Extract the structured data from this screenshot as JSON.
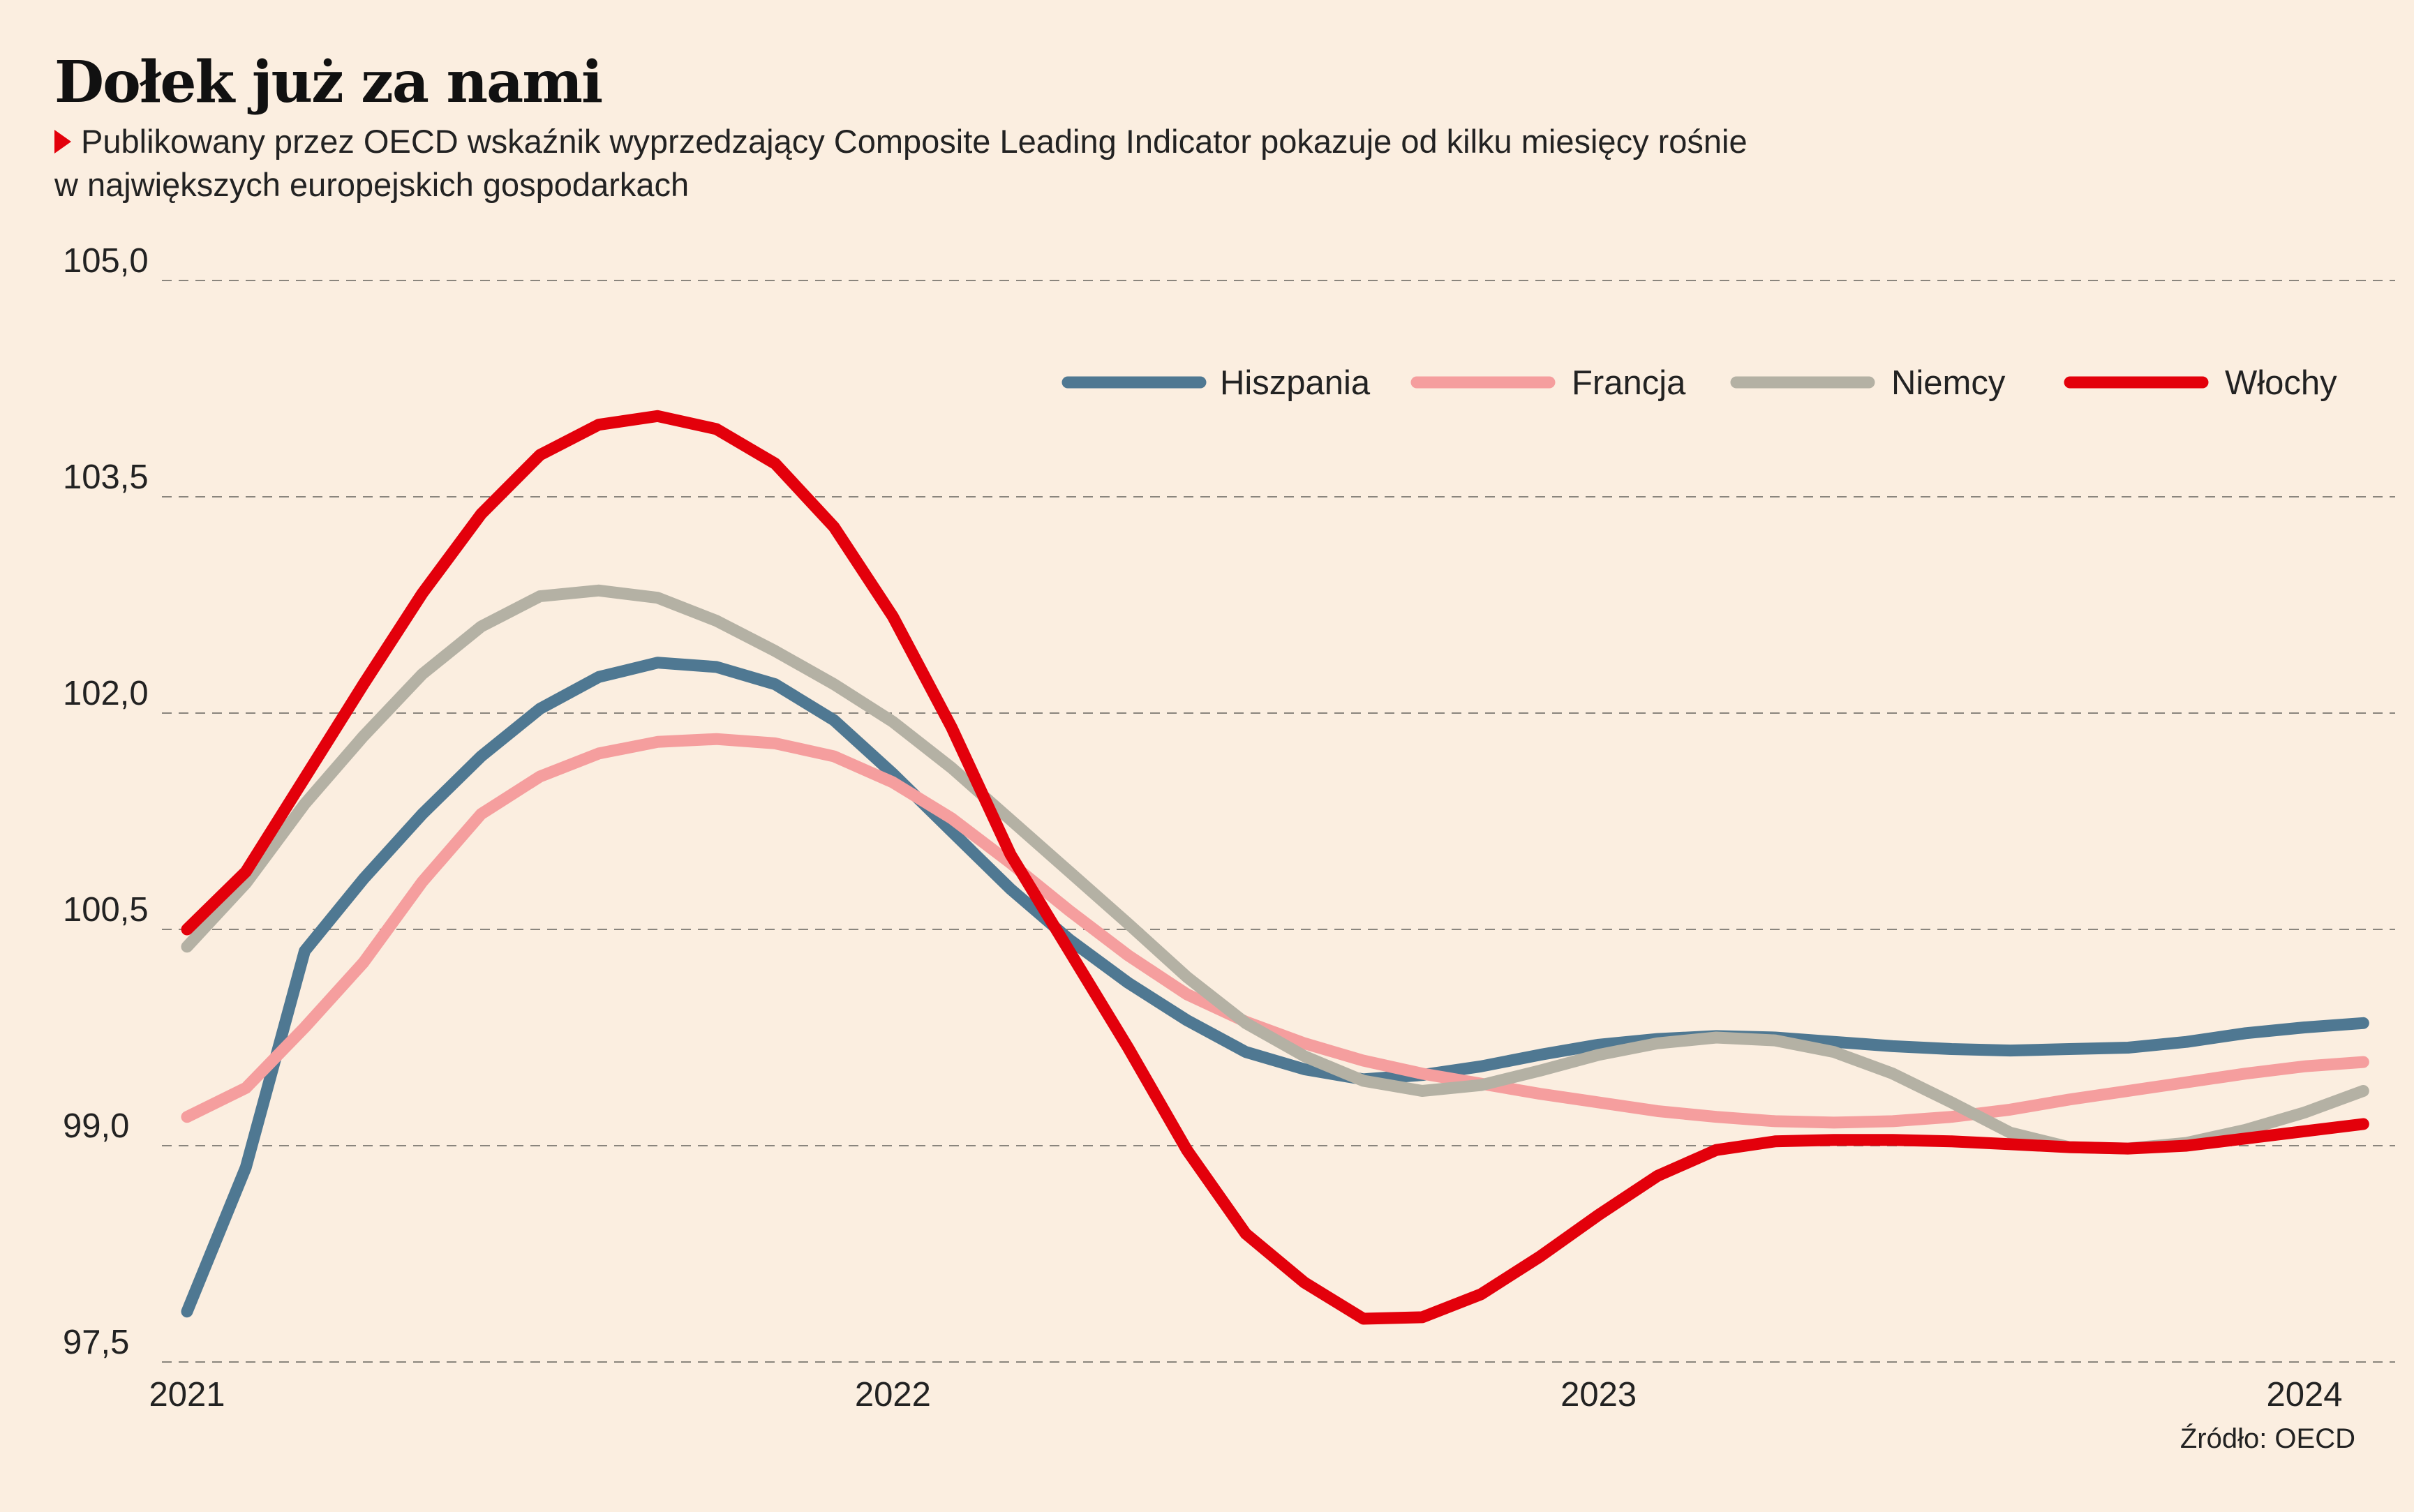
{
  "title": "Dołek już za nami",
  "subtitle_line1": "Publikowany przez OECD wskaźnik wyprzedzający Composite Leading Indicator pokazuje od kilku miesięcy rośnie",
  "subtitle_line2": "w największych europejskich gospodarkach",
  "source": "Źródło: OECD",
  "chart_data": {
    "type": "line",
    "ylim": [
      97.5,
      105.0
    ],
    "y_ticks": [
      "105,0",
      "103,5",
      "102,0",
      "100,5",
      "99,0",
      "97,5"
    ],
    "y_tick_values": [
      105.0,
      103.5,
      102.0,
      100.5,
      99.0,
      97.5
    ],
    "x_ticks": [
      "2021",
      "2022",
      "2023",
      "2024"
    ],
    "xlim": [
      0,
      36
    ],
    "grid": "horizontal dashed",
    "legend_placement": "top-right",
    "series": [
      {
        "name": "Hiszpania",
        "color": "#4f7892",
        "values": [
          97.85,
          98.85,
          100.35,
          100.85,
          101.3,
          101.7,
          102.03,
          102.25,
          102.35,
          102.32,
          102.2,
          101.95,
          101.58,
          101.18,
          100.78,
          100.43,
          100.13,
          99.87,
          99.65,
          99.53,
          99.46,
          99.49,
          99.55,
          99.63,
          99.7,
          99.74,
          99.76,
          99.75,
          99.72,
          99.69,
          99.67,
          99.66,
          99.67,
          99.68,
          99.72,
          99.78,
          99.82,
          99.85
        ]
      },
      {
        "name": "Francja",
        "color": "#f59e9e",
        "values": [
          99.2,
          99.4,
          99.82,
          100.27,
          100.83,
          101.3,
          101.56,
          101.72,
          101.8,
          101.82,
          101.79,
          101.7,
          101.52,
          101.27,
          100.96,
          100.63,
          100.32,
          100.05,
          99.86,
          99.71,
          99.59,
          99.5,
          99.43,
          99.36,
          99.3,
          99.24,
          99.2,
          99.17,
          99.16,
          99.17,
          99.2,
          99.25,
          99.32,
          99.38,
          99.44,
          99.5,
          99.55,
          99.58
        ]
      },
      {
        "name": "Niemcy",
        "color": "#b4b1a4",
        "values": [
          100.38,
          100.82,
          101.37,
          101.84,
          102.27,
          102.6,
          102.81,
          102.85,
          102.8,
          102.64,
          102.43,
          102.2,
          101.94,
          101.62,
          101.26,
          100.9,
          100.54,
          100.17,
          99.85,
          99.62,
          99.45,
          99.38,
          99.42,
          99.52,
          99.63,
          99.71,
          99.75,
          99.73,
          99.65,
          99.5,
          99.3,
          99.09,
          98.99,
          98.98,
          99.02,
          99.11,
          99.23,
          99.38
        ]
      },
      {
        "name": "Włochy",
        "color": "#e3000b",
        "values": [
          100.5,
          100.9,
          101.55,
          102.2,
          102.83,
          103.38,
          103.79,
          104.0,
          104.06,
          103.97,
          103.73,
          103.29,
          102.67,
          101.9,
          101.02,
          100.35,
          99.68,
          98.97,
          98.39,
          98.05,
          97.8,
          97.81,
          97.97,
          98.23,
          98.52,
          98.79,
          98.97,
          99.03,
          99.04,
          99.04,
          99.03,
          99.01,
          98.99,
          98.98,
          99.0,
          99.05,
          99.1,
          99.15
        ]
      }
    ]
  }
}
